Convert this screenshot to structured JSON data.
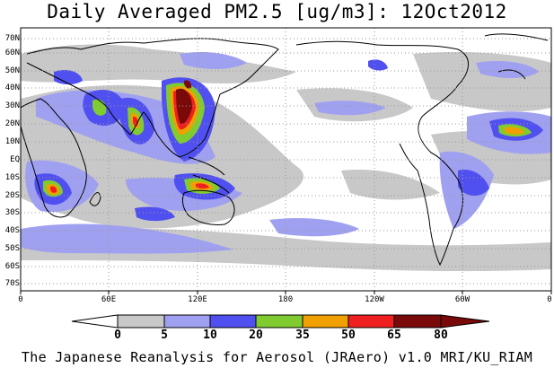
{
  "title": "Daily Averaged PM2.5 [ug/m3]: 12Oct2012",
  "credit": "The Japanese Reanalysis for Aerosol (JRAero) v1.0 MRI/KU_RIAM",
  "lat_labels": [
    "70N",
    "60N",
    "50N",
    "40N",
    "30N",
    "20N",
    "10N",
    "EQ",
    "10S",
    "20S",
    "30S",
    "40S",
    "50S",
    "60S",
    "70S"
  ],
  "lon_labels": [
    "0",
    "60E",
    "120E",
    "180",
    "120W",
    "60W",
    "0"
  ],
  "colorbar": {
    "levels": [
      "0",
      "5",
      "10",
      "20",
      "35",
      "50",
      "65",
      "80"
    ],
    "colors": [
      "#ffffff",
      "#c8c8c8",
      "#a0a0f0",
      "#5050f0",
      "#80cc30",
      "#f0a000",
      "#f02020",
      "#7a0a0a"
    ]
  }
}
